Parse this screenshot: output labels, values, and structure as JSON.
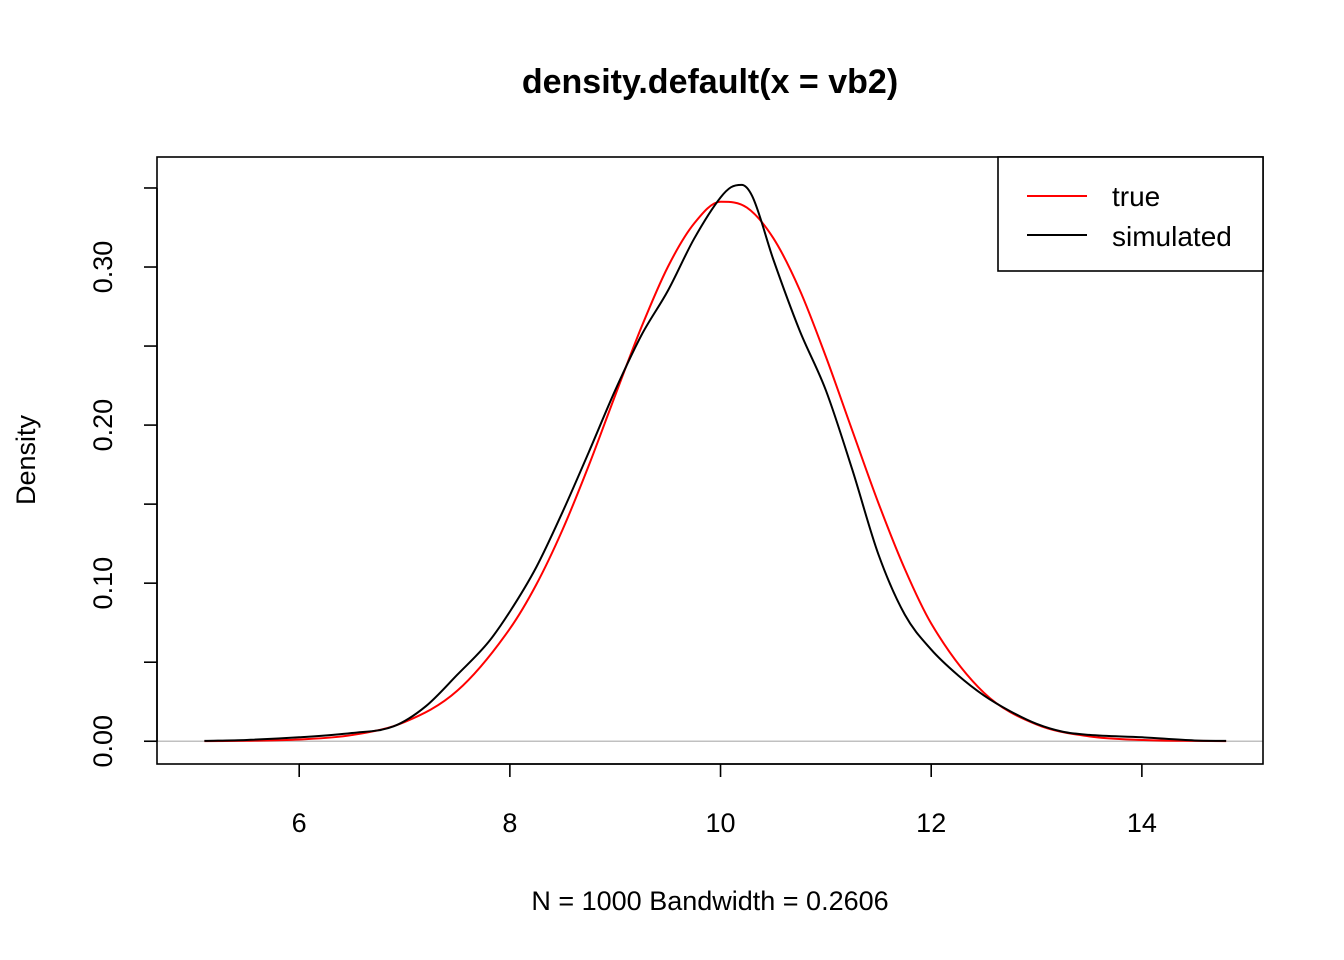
{
  "chart_data": {
    "type": "line",
    "title": "density.default(x = vb2)",
    "xlabel": "N = 1000   Bandwidth = 0.2606",
    "ylabel": "Density",
    "xlim": [
      4.65,
      15.15
    ],
    "ylim": [
      -0.0144,
      0.3696
    ],
    "x_ticks": [
      6,
      8,
      10,
      12,
      14
    ],
    "x_tick_labels": [
      "6",
      "8",
      "10",
      "12",
      "14"
    ],
    "y_ticks": [
      0.0,
      0.05,
      0.1,
      0.15,
      0.2,
      0.25,
      0.3,
      0.35
    ],
    "y_tick_labels": [
      "0.00",
      "",
      "0.10",
      "",
      "0.20",
      "",
      "0.30",
      ""
    ],
    "grid": false,
    "baseline": {
      "y": 0,
      "color": "#c0c0c0"
    },
    "legend": {
      "position": "top-right",
      "entries": [
        "true",
        "simulated"
      ]
    },
    "series": [
      {
        "name": "true",
        "color": "#ff0000",
        "x": [
          5.1,
          5.5,
          6.0,
          6.5,
          7.0,
          7.5,
          8.0,
          8.25,
          8.5,
          8.75,
          9.0,
          9.25,
          9.5,
          9.75,
          10.0,
          10.25,
          10.5,
          10.75,
          11.0,
          11.25,
          11.5,
          11.75,
          12.0,
          12.5,
          13.0,
          13.5,
          14.0,
          14.5,
          14.8
        ],
        "y": [
          0.0001,
          0.0003,
          0.0011,
          0.0039,
          0.0121,
          0.0319,
          0.0712,
          0.099,
          0.1338,
          0.1746,
          0.2188,
          0.2621,
          0.3001,
          0.3276,
          0.3413,
          0.3376,
          0.3184,
          0.2858,
          0.2433,
          0.1967,
          0.1505,
          0.1089,
          0.0745,
          0.0307,
          0.0106,
          0.0031,
          0.0008,
          0.0002,
          0.0001
        ]
      },
      {
        "name": "simulated",
        "color": "#000000",
        "x": [
          5.1,
          5.5,
          6.0,
          6.5,
          6.9,
          7.2,
          7.5,
          7.8,
          8.0,
          8.25,
          8.5,
          8.75,
          9.0,
          9.25,
          9.5,
          9.75,
          10.0,
          10.1,
          10.2,
          10.3,
          10.5,
          10.75,
          11.0,
          11.25,
          11.5,
          11.75,
          12.0,
          12.25,
          12.5,
          12.75,
          13.0,
          13.25,
          13.5,
          14.0,
          14.5,
          14.8
        ],
        "y": [
          0.0002,
          0.0008,
          0.0025,
          0.0052,
          0.0095,
          0.022,
          0.042,
          0.063,
          0.082,
          0.11,
          0.145,
          0.183,
          0.222,
          0.257,
          0.285,
          0.318,
          0.344,
          0.3505,
          0.352,
          0.345,
          0.305,
          0.26,
          0.222,
          0.172,
          0.118,
          0.08,
          0.058,
          0.042,
          0.029,
          0.019,
          0.011,
          0.006,
          0.004,
          0.0025,
          0.0005,
          0.0002
        ]
      }
    ]
  }
}
